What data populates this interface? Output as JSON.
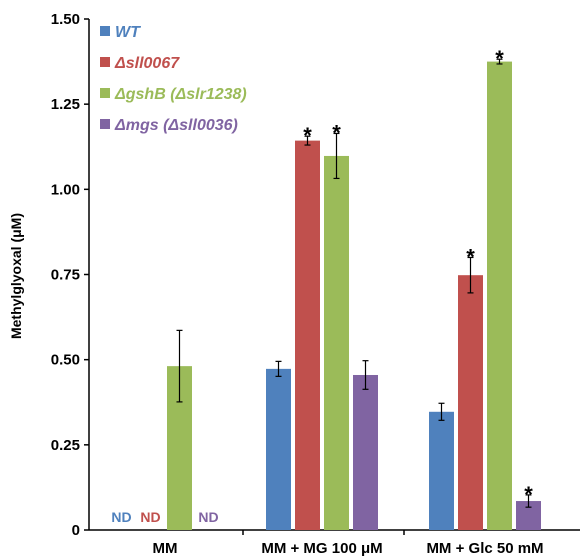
{
  "chart_data": {
    "type": "bar",
    "ylabel": "Methylglyoxal (μM)",
    "ylim": [
      0,
      1.5
    ],
    "yticks": [
      "0",
      "0.25",
      "0.50",
      "0.75",
      "1.00",
      "1.25",
      "1.50"
    ],
    "categories": [
      "MM",
      "MM + MG 100 μM",
      "MM + Glc 50 mM"
    ],
    "series": [
      {
        "name": "WT",
        "color": "#4f81bd",
        "values": [
          null,
          0.473,
          0.347
        ],
        "errors": [
          null,
          0.022,
          0.025
        ],
        "labels": [
          "ND",
          "",
          ""
        ],
        "stars": [
          false,
          false,
          false
        ]
      },
      {
        "name": "Δsll0067",
        "color": "#c0504d",
        "values": [
          null,
          1.143,
          0.748
        ],
        "errors": [
          null,
          0.013,
          0.052
        ],
        "labels": [
          "ND",
          "",
          ""
        ],
        "stars": [
          false,
          true,
          true
        ]
      },
      {
        "name": "ΔgshB (Δslr1238)",
        "color": "#9bbb59",
        "values": [
          0.481,
          1.098,
          1.375
        ],
        "errors": [
          0.105,
          0.066,
          0.007
        ],
        "labels": [
          "",
          "",
          ""
        ],
        "stars": [
          false,
          true,
          true
        ]
      },
      {
        "name": "Δmgs (Δsll0036)",
        "color": "#8064a2",
        "values": [
          null,
          0.455,
          0.085
        ],
        "errors": [
          null,
          0.042,
          0.018
        ],
        "labels": [
          "ND",
          "",
          ""
        ],
        "stars": [
          false,
          false,
          true
        ]
      }
    ],
    "legend_position": "top-left",
    "grid": false
  }
}
